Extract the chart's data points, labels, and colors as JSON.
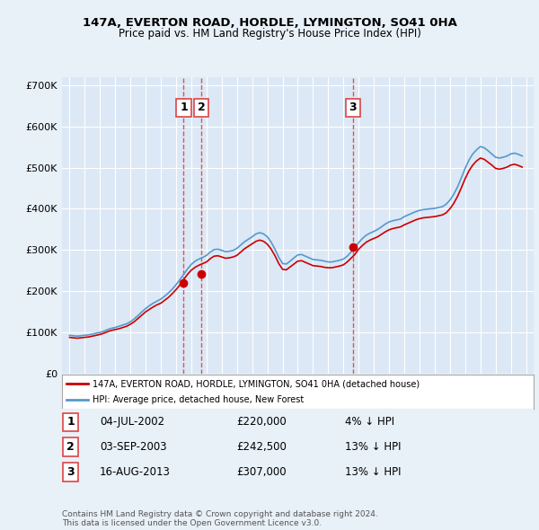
{
  "title": "147A, EVERTON ROAD, HORDLE, LYMINGTON, SO41 0HA",
  "subtitle": "Price paid vs. HM Land Registry's House Price Index (HPI)",
  "red_label": "147A, EVERTON ROAD, HORDLE, LYMINGTON, SO41 0HA (detached house)",
  "blue_label": "HPI: Average price, detached house, New Forest",
  "background_color": "#e8f0f8",
  "plot_bg": "#dce8f5",
  "grid_color": "#ffffff",
  "ylim": [
    0,
    720000
  ],
  "yticks": [
    0,
    100000,
    200000,
    300000,
    400000,
    500000,
    600000,
    700000
  ],
  "ytick_labels": [
    "£0",
    "£100K",
    "£200K",
    "£300K",
    "£400K",
    "£500K",
    "£600K",
    "£700K"
  ],
  "xlim_start": 1994.5,
  "xlim_end": 2025.5,
  "sale_dates": [
    2002.5,
    2003.67,
    2013.62
  ],
  "sale_prices": [
    220000,
    242500,
    307000
  ],
  "sale_labels": [
    "1",
    "2",
    "3"
  ],
  "sale_date_strings": [
    "04-JUL-2002",
    "03-SEP-2003",
    "16-AUG-2013"
  ],
  "sale_price_strings": [
    "£220,000",
    "£242,500",
    "£307,000"
  ],
  "sale_hpi_strings": [
    "4% ↓ HPI",
    "13% ↓ HPI",
    "13% ↓ HPI"
  ],
  "footer": "Contains HM Land Registry data © Crown copyright and database right 2024.\nThis data is licensed under the Open Government Licence v3.0.",
  "red_color": "#cc0000",
  "blue_color": "#5599cc",
  "marker_color": "#cc0000",
  "vline_color": "#dd4444"
}
